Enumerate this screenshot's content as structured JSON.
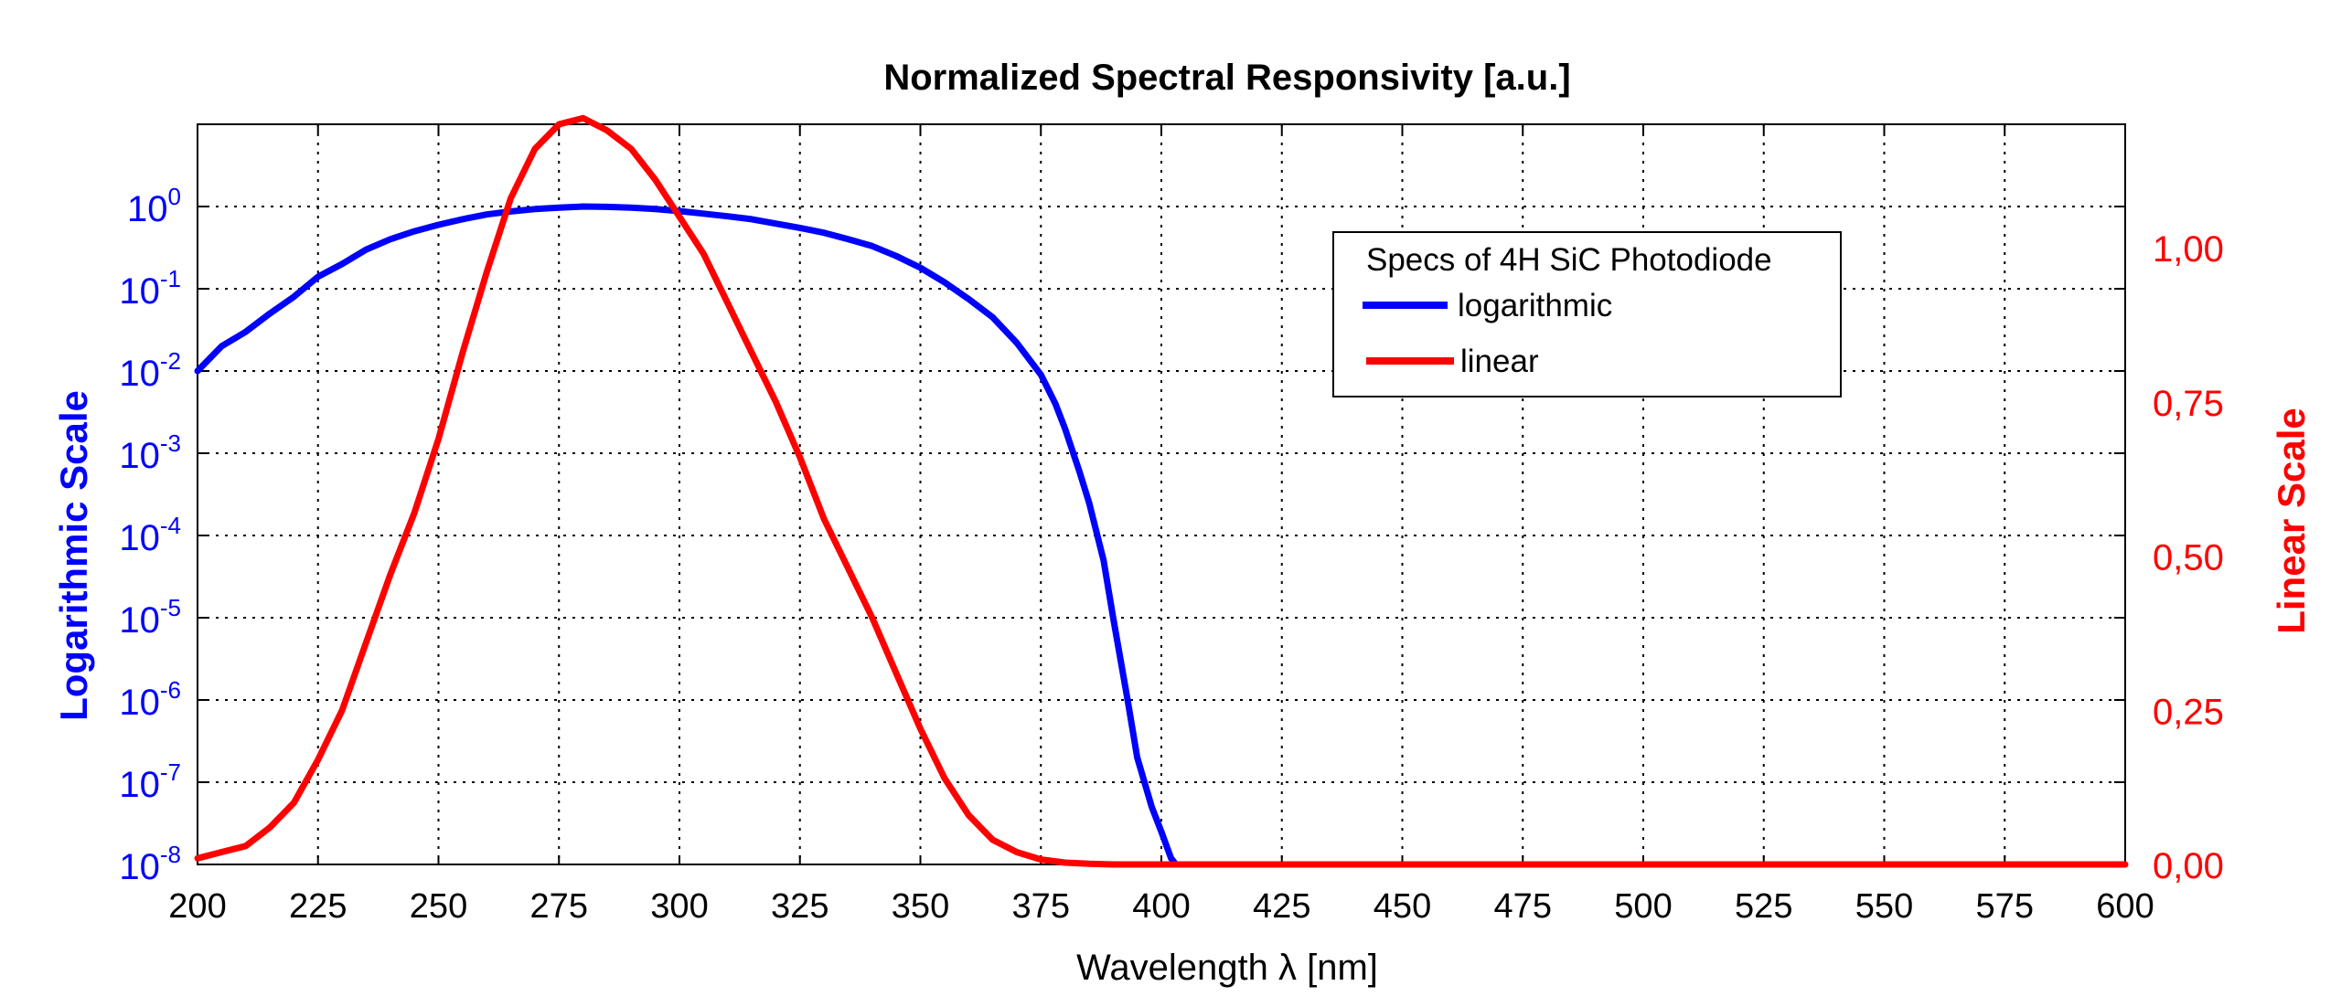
{
  "chart_data": {
    "type": "line",
    "title": "Normalized Spectral Responsivity [a.u.]",
    "xlabel": "Wavelength λ [nm]",
    "ylabel_left": "Logarithmic Scale",
    "ylabel_right": "Linear Scale",
    "xlim": [
      200,
      600
    ],
    "x_ticks": [
      "200",
      "225",
      "250",
      "275",
      "300",
      "325",
      "350",
      "375",
      "400",
      "425",
      "450",
      "475",
      "500",
      "525",
      "550",
      "575",
      "600"
    ],
    "y_left": {
      "scale": "log",
      "lim": [
        1e-08,
        10
      ],
      "tick_exponents": [
        "0",
        "-1",
        "-2",
        "-3",
        "-4",
        "-5",
        "-6",
        "-7",
        "-8"
      ],
      "tick_base": "10"
    },
    "y_right": {
      "scale": "linear",
      "lim": [
        0,
        1.2
      ],
      "tick_labels": [
        "1,00",
        "0,75",
        "0,50",
        "0,25",
        "0,00"
      ]
    },
    "grid": true,
    "legend": {
      "title": "Specs of 4H SiC Photodiode",
      "placement": "upper-right-inside",
      "entries": [
        "logarithmic",
        "linear"
      ]
    },
    "colors": {
      "logarithmic": "#0000ff",
      "linear": "#ff0000"
    },
    "series": [
      {
        "name": "logarithmic",
        "axis": "left",
        "x": [
          200,
          205,
          210,
          215,
          220,
          225,
          230,
          235,
          240,
          245,
          250,
          255,
          260,
          265,
          270,
          275,
          280,
          285,
          290,
          295,
          300,
          305,
          310,
          315,
          320,
          325,
          330,
          335,
          340,
          345,
          350,
          355,
          360,
          365,
          370,
          375,
          378,
          380,
          383,
          385,
          388,
          390,
          393,
          395,
          398,
          400,
          402,
          403
        ],
        "y": [
          0.01,
          0.02,
          0.03,
          0.05,
          0.08,
          0.14,
          0.2,
          0.3,
          0.4,
          0.5,
          0.6,
          0.7,
          0.8,
          0.87,
          0.93,
          0.97,
          1.0,
          0.99,
          0.97,
          0.93,
          0.88,
          0.82,
          0.76,
          0.7,
          0.62,
          0.55,
          0.48,
          0.4,
          0.33,
          0.25,
          0.18,
          0.12,
          0.075,
          0.045,
          0.022,
          0.009,
          0.004,
          0.002,
          0.0006,
          0.00025,
          5e-05,
          1e-05,
          1e-06,
          2e-07,
          5e-08,
          2.5e-08,
          1.2e-08,
          1e-08
        ]
      },
      {
        "name": "linear",
        "axis": "right",
        "x": [
          200,
          205,
          210,
          215,
          220,
          225,
          230,
          235,
          240,
          245,
          250,
          255,
          260,
          265,
          270,
          275,
          280,
          285,
          290,
          295,
          300,
          305,
          310,
          315,
          320,
          325,
          330,
          335,
          340,
          345,
          350,
          355,
          360,
          365,
          370,
          375,
          380,
          385,
          390,
          395,
          400,
          450,
          500,
          550,
          600
        ],
        "y": [
          0.01,
          0.02,
          0.03,
          0.06,
          0.1,
          0.17,
          0.25,
          0.36,
          0.47,
          0.57,
          0.69,
          0.83,
          0.96,
          1.08,
          1.16,
          1.2,
          1.21,
          1.19,
          1.16,
          1.11,
          1.05,
          0.99,
          0.91,
          0.83,
          0.75,
          0.66,
          0.56,
          0.48,
          0.4,
          0.31,
          0.22,
          0.14,
          0.08,
          0.04,
          0.02,
          0.008,
          0.003,
          0.001,
          0.0,
          0.0,
          0.0,
          0.0,
          0.0,
          0.0,
          0.0
        ]
      }
    ]
  }
}
